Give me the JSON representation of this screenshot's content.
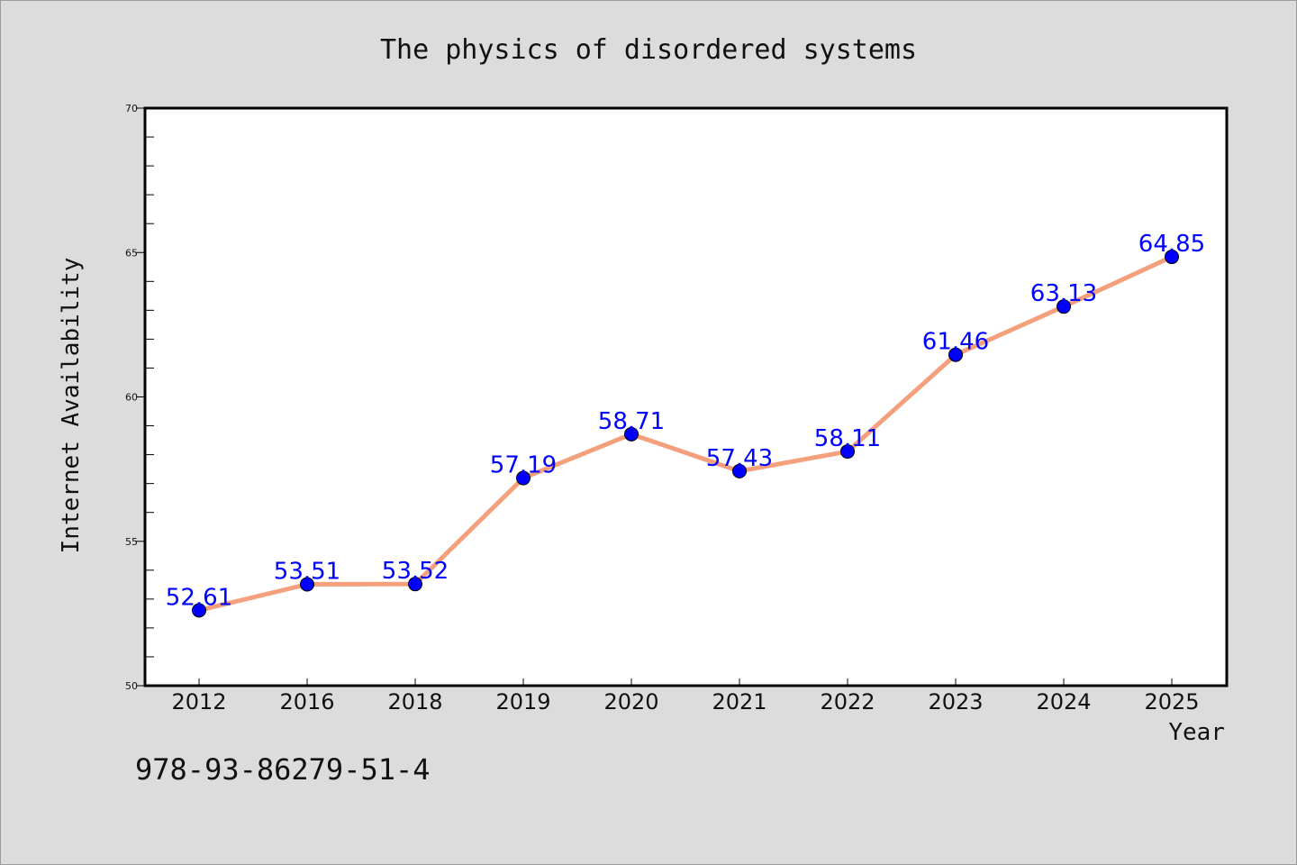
{
  "chart_data": {
    "type": "line",
    "title": "The physics of disordered systems",
    "xlabel": "Year",
    "ylabel": "Internet Availability",
    "categories": [
      "2012",
      "2016",
      "2018",
      "2019",
      "2020",
      "2021",
      "2022",
      "2023",
      "2024",
      "2025"
    ],
    "series": [
      {
        "values": [
          52.61,
          53.51,
          53.52,
          57.19,
          58.71,
          57.43,
          58.11,
          61.46,
          63.13,
          64.85
        ],
        "labels": [
          "52.61",
          "53.51",
          "53.52",
          "57.19",
          "58.71",
          "57.43",
          "58.11",
          "61.46",
          "63.13",
          "64.85"
        ]
      }
    ],
    "ylim": [
      50,
      70
    ],
    "yticks": [
      "50",
      "55",
      "60",
      "65",
      "70"
    ],
    "grid": false,
    "legend": "none",
    "colors": {
      "line": "#f4a07c",
      "marker": "#0000ff",
      "data_label": "#0000ff",
      "background": "#dcdcdc",
      "plot_background": "#ffffff"
    }
  },
  "footnote": "978-93-86279-51-4"
}
